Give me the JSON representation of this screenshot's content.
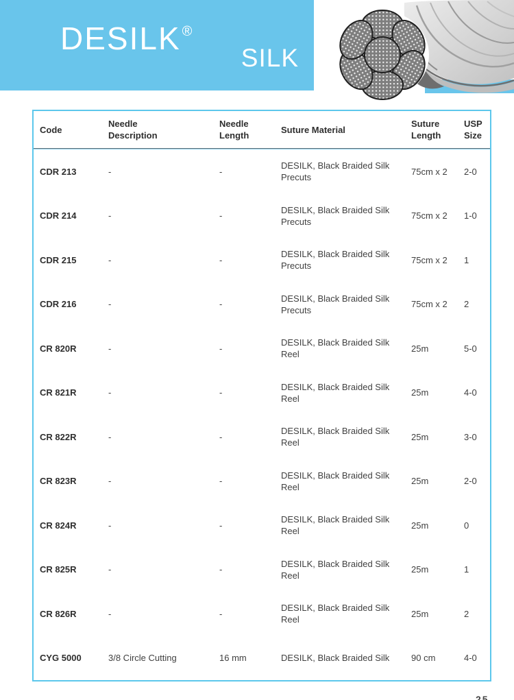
{
  "colors": {
    "accent-blue": "#69c5eb",
    "table-border": "#5cc7ec",
    "text-main": "#3f3f3f",
    "text-strong": "#2e2e2e"
  },
  "banner": {
    "brand": "DESILK",
    "registered_mark": "®",
    "product": "SILK",
    "image_alt": "braided-silk-suture-cross-section"
  },
  "table": {
    "columns": [
      {
        "id": "code",
        "lines": [
          "Code"
        ]
      },
      {
        "id": "needle-description",
        "lines": [
          "Needle",
          "Description"
        ]
      },
      {
        "id": "needle-length",
        "lines": [
          "Needle",
          "Length"
        ]
      },
      {
        "id": "suture-material",
        "lines": [
          "Suture Material"
        ]
      },
      {
        "id": "suture-length",
        "lines": [
          "Suture",
          "Length"
        ]
      },
      {
        "id": "usp-size",
        "lines": [
          "USP",
          "Size"
        ]
      }
    ],
    "rows": [
      {
        "code": "CDR 213",
        "needle_description": "-",
        "needle_length": "-",
        "suture_material_lines": [
          "DESILK, Black Braided Silk",
          "Precuts"
        ],
        "suture_length": "75cm x 2",
        "usp_size": "2-0"
      },
      {
        "code": "CDR 214",
        "needle_description": "-",
        "needle_length": "-",
        "suture_material_lines": [
          "DESILK, Black Braided Silk",
          "Precuts"
        ],
        "suture_length": "75cm x 2",
        "usp_size": "1-0"
      },
      {
        "code": "CDR 215",
        "needle_description": "-",
        "needle_length": "-",
        "suture_material_lines": [
          "DESILK, Black Braided Silk",
          "Precuts"
        ],
        "suture_length": "75cm x 2",
        "usp_size": "1"
      },
      {
        "code": "CDR 216",
        "needle_description": "-",
        "needle_length": "-",
        "suture_material_lines": [
          "DESILK, Black Braided Silk",
          "Precuts"
        ],
        "suture_length": "75cm x 2",
        "usp_size": "2"
      },
      {
        "code": "CR 820R",
        "needle_description": "-",
        "needle_length": "-",
        "suture_material_lines": [
          "DESILK, Black Braided Silk",
          "Reel"
        ],
        "suture_length": "25m",
        "usp_size": "5-0"
      },
      {
        "code": "CR 821R",
        "needle_description": "-",
        "needle_length": "-",
        "suture_material_lines": [
          "DESILK, Black Braided Silk",
          "Reel"
        ],
        "suture_length": "25m",
        "usp_size": "4-0"
      },
      {
        "code": "CR 822R",
        "needle_description": "-",
        "needle_length": "-",
        "suture_material_lines": [
          "DESILK, Black Braided Silk",
          "Reel"
        ],
        "suture_length": "25m",
        "usp_size": "3-0"
      },
      {
        "code": "CR 823R",
        "needle_description": "-",
        "needle_length": "-",
        "suture_material_lines": [
          "DESILK, Black Braided Silk",
          "Reel"
        ],
        "suture_length": "25m",
        "usp_size": "2-0"
      },
      {
        "code": "CR 824R",
        "needle_description": "-",
        "needle_length": "-",
        "suture_material_lines": [
          "DESILK, Black Braided Silk",
          "Reel"
        ],
        "suture_length": "25m",
        "usp_size": "0"
      },
      {
        "code": "CR 825R",
        "needle_description": "-",
        "needle_length": "-",
        "suture_material_lines": [
          "DESILK, Black Braided Silk",
          "Reel"
        ],
        "suture_length": "25m",
        "usp_size": "1"
      },
      {
        "code": "CR 826R",
        "needle_description": "-",
        "needle_length": "-",
        "suture_material_lines": [
          "DESILK, Black Braided Silk",
          "Reel"
        ],
        "suture_length": "25m",
        "usp_size": "2"
      },
      {
        "code": "CYG 5000",
        "needle_description": "3/8 Circle Cutting",
        "needle_length": "16 mm",
        "suture_material_lines": [
          "DESILK, Black Braided Silk"
        ],
        "suture_length": "90 cm",
        "usp_size": "4-0"
      }
    ]
  },
  "page_number": "25"
}
